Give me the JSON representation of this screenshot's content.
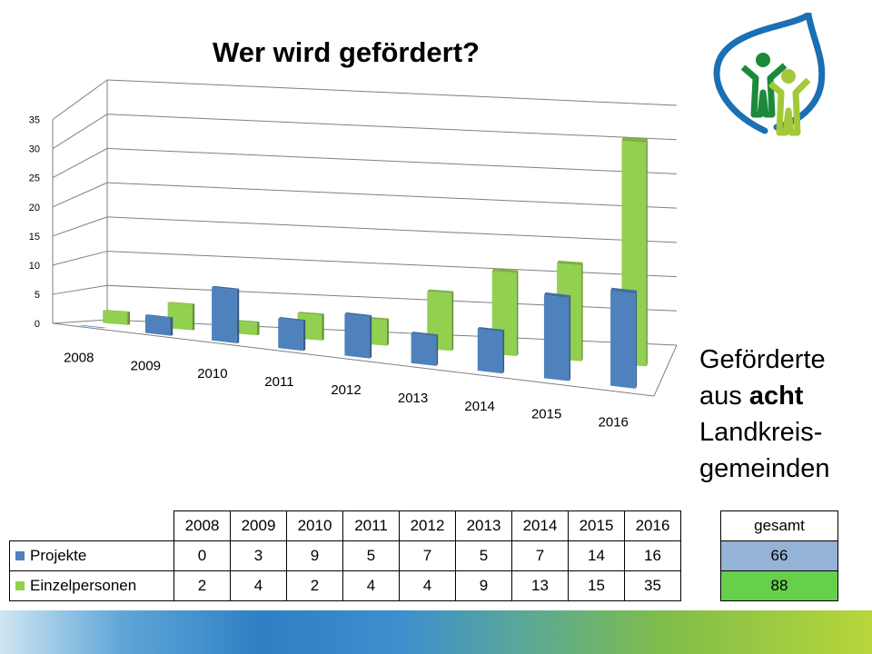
{
  "slide": {
    "title": "Wer wird gefördert?",
    "side_line1": "Geförderte",
    "side_line2_pre": "aus ",
    "side_line2_bold": "acht",
    "side_line3": "Landkreis-",
    "side_line4": "gemeinden"
  },
  "colors": {
    "projekte": "#4f81bd",
    "einzelpersonen": "#92d050",
    "gesamt_projekte_bg": "#95b3d7",
    "gesamt_einzel_bg": "#66d04a"
  },
  "chart_data": {
    "type": "bar",
    "title": "",
    "categories": [
      "2008",
      "2009",
      "2010",
      "2011",
      "2012",
      "2013",
      "2014",
      "2015",
      "2016"
    ],
    "series": [
      {
        "name": "Projekte",
        "values": [
          0,
          3,
          9,
          5,
          7,
          5,
          7,
          14,
          16
        ]
      },
      {
        "name": "Einzelpersonen",
        "values": [
          2,
          4,
          2,
          4,
          4,
          9,
          13,
          15,
          35
        ]
      }
    ],
    "ylim": [
      0,
      35
    ],
    "yticks": [
      "0",
      "5",
      "10",
      "15",
      "20",
      "25",
      "30",
      "35"
    ],
    "grid": true,
    "legend": "data table below chart"
  },
  "table": {
    "rows": [
      {
        "label": "Projekte",
        "values": [
          "0",
          "3",
          "9",
          "5",
          "7",
          "5",
          "7",
          "14",
          "16"
        ]
      },
      {
        "label": "Einzelpersonen",
        "values": [
          "2",
          "4",
          "2",
          "4",
          "4",
          "9",
          "13",
          "15",
          "35"
        ]
      }
    ]
  },
  "totals": {
    "header": "gesamt",
    "projekte": "66",
    "einzelpersonen": "88"
  }
}
